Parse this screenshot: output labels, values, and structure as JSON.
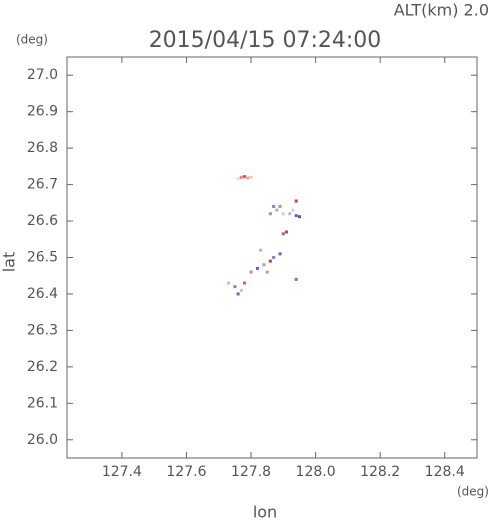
{
  "chart_data": {
    "type": "scatter",
    "title": "2015/04/15 07:24:00",
    "annotation": "ALT(km)  2.0",
    "y_unit": "(deg)",
    "x_unit": "(deg)",
    "x_label": "lon",
    "y_label": "lat",
    "xlim": [
      127.23,
      128.5
    ],
    "ylim": [
      25.95,
      27.05
    ],
    "xticks": [
      127.4,
      127.6,
      127.8,
      {
        "value": 128.0,
        "label": "128.0"
      },
      128.2,
      128.4
    ],
    "yticks": [
      {
        "value": 26.0,
        "label": "26.0"
      },
      26.1,
      26.2,
      26.3,
      26.4,
      26.5,
      26.6,
      26.7,
      26.8,
      26.9,
      {
        "value": 27.0,
        "label": "27.0"
      }
    ],
    "x": [
      127.77,
      127.78,
      127.79,
      127.8,
      127.76,
      127.87,
      127.88,
      127.9,
      127.92,
      127.94,
      127.95,
      127.93,
      127.89,
      127.91,
      127.9,
      127.94,
      127.86,
      127.73,
      127.75,
      127.76,
      127.77,
      127.78,
      127.8,
      127.82,
      127.84,
      127.86,
      127.87,
      127.85,
      127.89,
      127.94,
      127.83
    ],
    "values": [
      26.72,
      26.722,
      26.718,
      26.72,
      26.716,
      26.64,
      26.63,
      26.62,
      26.62,
      26.615,
      26.612,
      26.63,
      26.64,
      26.57,
      26.565,
      26.655,
      26.62,
      26.43,
      26.42,
      26.4,
      26.41,
      26.43,
      26.46,
      26.47,
      26.48,
      26.49,
      26.5,
      26.46,
      26.51,
      26.44,
      26.52
    ],
    "colors": [
      "#f08080",
      "#e05050",
      "#f4a0a0",
      "#f8c0c0",
      "#fbd0d0",
      "#8080e0",
      "#c0a0e0",
      "#f0c0d0",
      "#b0b0f0",
      "#6060d0",
      "#5050c0",
      "#d0d0f0",
      "#e08080",
      "#d04040",
      "#a060a0",
      "#c04040",
      "#9090e0",
      "#f0b0b0",
      "#8080e0",
      "#6060d0",
      "#c0c0f0",
      "#e06060",
      "#9090e0",
      "#6060c0",
      "#a0a0e0",
      "#c04040",
      "#8080d0",
      "#e09090",
      "#6060c0",
      "#c06060",
      "#b0b0e0"
    ]
  }
}
